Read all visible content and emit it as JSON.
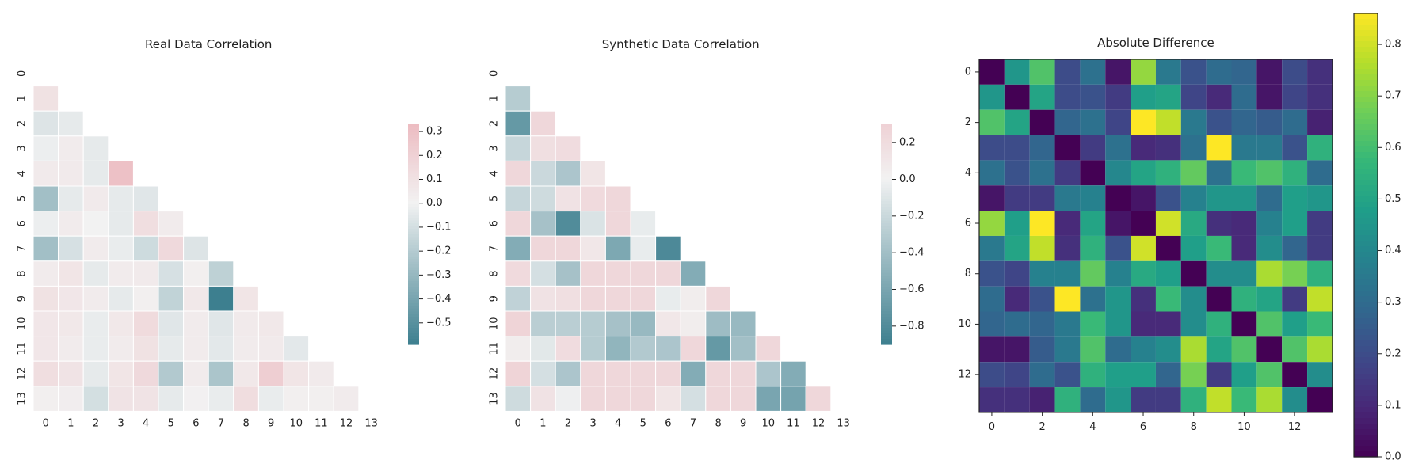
{
  "chart_data": [
    {
      "type": "heatmap",
      "title": "Real Data Correlation",
      "mask": "lower-triangle",
      "x_ticks": [
        "0",
        "1",
        "2",
        "3",
        "4",
        "5",
        "6",
        "7",
        "8",
        "9",
        "10",
        "11",
        "12",
        "13"
      ],
      "y_ticks": [
        "0",
        "1",
        "2",
        "3",
        "4",
        "5",
        "6",
        "7",
        "8",
        "9",
        "10",
        "11",
        "12",
        "13"
      ],
      "colormap": "diverging-teal-pink",
      "colors": {
        "negative": "#3d7f8f",
        "center": "#f2f2f2",
        "positive": "#e8919b"
      },
      "colorbar": {
        "vmin": -0.59,
        "vmax": 0.33,
        "ticks": [
          0.3,
          0.2,
          0.1,
          0.0,
          -0.1,
          -0.2,
          -0.3,
          -0.4,
          -0.5
        ],
        "tick_labels": [
          "0.3",
          "0.2",
          "0.1",
          "0.0",
          "−0.1",
          "−0.2",
          "−0.3",
          "−0.4",
          "−0.5"
        ]
      },
      "values": [
        [],
        [
          0.1
        ],
        [
          -0.07,
          -0.04
        ],
        [
          -0.02,
          0.04,
          -0.04
        ],
        [
          0.05,
          0.05,
          -0.04,
          0.3
        ],
        [
          -0.26,
          -0.04,
          0.05,
          -0.04,
          -0.06
        ],
        [
          -0.02,
          0.04,
          0.0,
          -0.04,
          0.12,
          0.04
        ],
        [
          -0.26,
          -0.09,
          0.04,
          -0.03,
          -0.12,
          0.15,
          -0.07
        ],
        [
          0.04,
          0.08,
          -0.04,
          0.04,
          0.05,
          -0.09,
          0.02,
          -0.17
        ],
        [
          0.1,
          0.07,
          0.04,
          -0.04,
          0.02,
          -0.16,
          0.06,
          -0.59,
          0.08
        ],
        [
          0.07,
          0.06,
          -0.03,
          0.06,
          0.14,
          -0.06,
          0.04,
          -0.06,
          0.05,
          0.06
        ],
        [
          0.07,
          0.04,
          -0.03,
          0.04,
          0.1,
          -0.04,
          0.04,
          -0.05,
          0.04,
          0.05,
          -0.05
        ],
        [
          0.12,
          0.09,
          -0.04,
          0.08,
          0.15,
          -0.21,
          0.04,
          -0.23,
          0.06,
          0.22,
          0.08,
          0.05
        ],
        [
          0.02,
          0.03,
          -0.1,
          0.09,
          0.09,
          -0.04,
          0.01,
          -0.03,
          0.13,
          -0.03,
          0.02,
          0.02,
          0.04
        ]
      ]
    },
    {
      "type": "heatmap",
      "title": "Synthetic Data Correlation",
      "mask": "lower-triangle",
      "x_ticks": [
        "0",
        "1",
        "2",
        "3",
        "4",
        "5",
        "6",
        "7",
        "8",
        "9",
        "10",
        "11",
        "12",
        "13"
      ],
      "y_ticks": [
        "0",
        "1",
        "2",
        "3",
        "4",
        "5",
        "6",
        "7",
        "8",
        "9",
        "10",
        "11",
        "12",
        "13"
      ],
      "colormap": "diverging-teal-pink",
      "colors": {
        "negative": "#3d7f8f",
        "center": "#f2f2f2",
        "positive": "#e8919b"
      },
      "colorbar": {
        "vmin": -0.9,
        "vmax": 0.3,
        "ticks": [
          0.2,
          0.0,
          -0.2,
          -0.4,
          -0.6,
          -0.8
        ],
        "tick_labels": [
          "0.2",
          "0.0",
          "−0.2",
          "−0.4",
          "−0.6",
          "−0.8"
        ]
      },
      "values": [
        [],
        [
          -0.3
        ],
        [
          -0.7,
          0.25
        ],
        [
          -0.22,
          0.18,
          0.2
        ],
        [
          0.25,
          -0.2,
          -0.35,
          0.12
        ],
        [
          -0.22,
          -0.18,
          0.15,
          0.22,
          0.25
        ],
        [
          0.25,
          -0.38,
          -0.8,
          -0.12,
          0.25,
          -0.05
        ],
        [
          -0.55,
          0.25,
          0.25,
          0.1,
          -0.58,
          -0.05,
          -0.82
        ],
        [
          0.22,
          -0.15,
          -0.38,
          0.25,
          0.25,
          0.25,
          0.25,
          -0.55
        ],
        [
          -0.25,
          0.15,
          0.18,
          0.25,
          0.25,
          0.25,
          -0.05,
          0.05,
          0.25
        ],
        [
          0.28,
          -0.28,
          -0.28,
          -0.3,
          -0.38,
          -0.45,
          0.1,
          0.05,
          -0.42,
          -0.45
        ],
        [
          0.05,
          -0.08,
          0.2,
          -0.3,
          -0.48,
          -0.32,
          -0.35,
          0.25,
          -0.7,
          -0.4,
          0.25
        ],
        [
          0.28,
          -0.15,
          -0.35,
          0.25,
          0.25,
          0.25,
          0.25,
          -0.55,
          0.25,
          0.25,
          -0.35,
          -0.55
        ],
        [
          -0.18,
          0.15,
          -0.02,
          0.25,
          0.25,
          0.25,
          0.12,
          -0.15,
          0.25,
          0.25,
          -0.6,
          -0.62,
          0.25
        ]
      ]
    },
    {
      "type": "heatmap",
      "title": "Absolute Difference",
      "x_ticks": [
        "0",
        "2",
        "4",
        "6",
        "8",
        "10",
        "12"
      ],
      "y_ticks": [
        "0",
        "2",
        "4",
        "6",
        "8",
        "10",
        "12"
      ],
      "colormap": "viridis",
      "colors": {
        "low": "#440154",
        "high": "#fde725"
      },
      "colorbar": {
        "vmin": 0.0,
        "vmax": 0.86,
        "ticks": [
          0.0,
          0.1,
          0.2,
          0.3,
          0.4,
          0.5,
          0.6,
          0.7,
          0.8
        ],
        "tick_labels": [
          "0.0",
          "0.1",
          "0.2",
          "0.3",
          "0.4",
          "0.5",
          "0.6",
          "0.7",
          "0.8"
        ]
      },
      "values": [
        [
          0.0,
          0.45,
          0.62,
          0.2,
          0.32,
          0.05,
          0.72,
          0.35,
          0.22,
          0.3,
          0.28,
          0.05,
          0.2,
          0.12
        ],
        [
          0.45,
          0.0,
          0.5,
          0.2,
          0.22,
          0.15,
          0.48,
          0.5,
          0.18,
          0.1,
          0.3,
          0.05,
          0.18,
          0.12
        ],
        [
          0.62,
          0.5,
          0.0,
          0.28,
          0.32,
          0.18,
          0.86,
          0.78,
          0.35,
          0.22,
          0.28,
          0.25,
          0.3,
          0.08
        ],
        [
          0.2,
          0.2,
          0.28,
          0.0,
          0.15,
          0.32,
          0.1,
          0.12,
          0.32,
          0.86,
          0.35,
          0.35,
          0.22,
          0.55
        ],
        [
          0.32,
          0.22,
          0.32,
          0.15,
          0.0,
          0.4,
          0.5,
          0.55,
          0.65,
          0.32,
          0.58,
          0.62,
          0.55,
          0.3
        ],
        [
          0.05,
          0.15,
          0.15,
          0.35,
          0.38,
          0.0,
          0.05,
          0.22,
          0.38,
          0.45,
          0.45,
          0.3,
          0.48,
          0.45
        ],
        [
          0.72,
          0.48,
          0.86,
          0.1,
          0.5,
          0.05,
          0.0,
          0.8,
          0.52,
          0.12,
          0.1,
          0.38,
          0.48,
          0.15
        ],
        [
          0.35,
          0.5,
          0.78,
          0.12,
          0.55,
          0.22,
          0.8,
          0.0,
          0.48,
          0.58,
          0.1,
          0.42,
          0.28,
          0.15
        ],
        [
          0.22,
          0.18,
          0.38,
          0.38,
          0.65,
          0.38,
          0.52,
          0.48,
          0.0,
          0.42,
          0.42,
          0.75,
          0.68,
          0.55
        ],
        [
          0.3,
          0.1,
          0.22,
          0.86,
          0.32,
          0.45,
          0.12,
          0.58,
          0.42,
          0.0,
          0.55,
          0.5,
          0.15,
          0.78
        ],
        [
          0.28,
          0.3,
          0.28,
          0.35,
          0.58,
          0.45,
          0.1,
          0.1,
          0.42,
          0.55,
          0.0,
          0.62,
          0.48,
          0.58
        ],
        [
          0.05,
          0.05,
          0.25,
          0.35,
          0.62,
          0.3,
          0.38,
          0.42,
          0.75,
          0.5,
          0.62,
          0.0,
          0.62,
          0.75
        ],
        [
          0.2,
          0.18,
          0.3,
          0.22,
          0.55,
          0.48,
          0.48,
          0.28,
          0.68,
          0.15,
          0.48,
          0.62,
          0.0,
          0.42
        ],
        [
          0.12,
          0.12,
          0.08,
          0.55,
          0.3,
          0.45,
          0.15,
          0.15,
          0.55,
          0.78,
          0.58,
          0.75,
          0.42,
          0.0
        ]
      ]
    }
  ]
}
